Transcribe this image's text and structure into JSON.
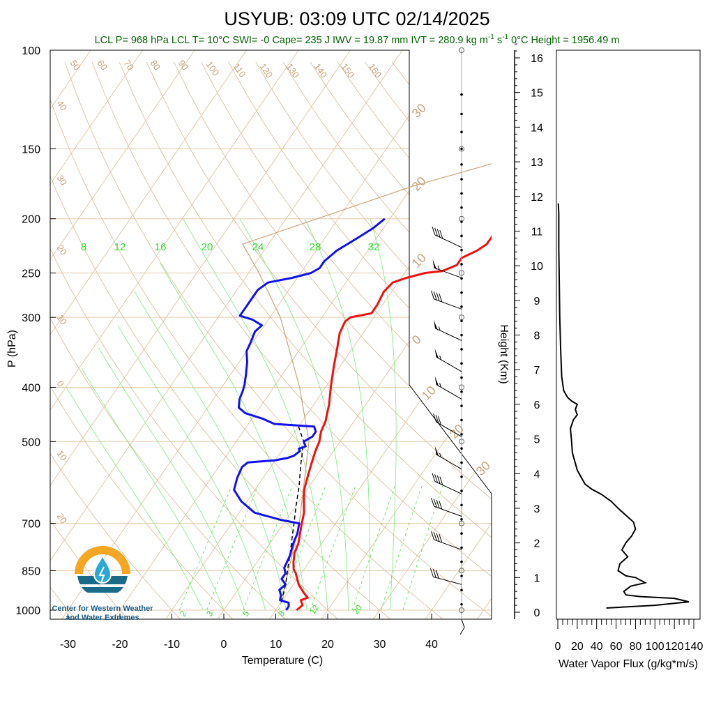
{
  "header": {
    "title": "USYUB: 03:09 UTC 02/14/2025",
    "subtitle_parts": [
      "LCL P= 968 hPa  LCL T= 10",
      "°C  SWI= -0  Cape= 235 J  IWV = 19.87 mm  IVT = 280.9 kg m",
      "-1",
      " s",
      "-1",
      "  0°C Height = 1956.49 m"
    ]
  },
  "logo": {
    "line1": "Center for Western Weather",
    "line2": "and Water Extremes",
    "colors": {
      "sun": "#f5a623",
      "water": "#1a6a8a",
      "drop": "#2aa8d8"
    }
  },
  "chart_data": [
    {
      "type": "line",
      "name": "skew-t",
      "xlabel": "Temperature (C)",
      "ylabel": "P (hPa)",
      "x_ticks": [
        -30,
        -20,
        -10,
        0,
        10,
        20,
        30,
        40
      ],
      "y_ticks": [
        100,
        150,
        200,
        250,
        300,
        400,
        500,
        700,
        850,
        1000
      ],
      "y_scale": "log",
      "temperature_profile": {
        "color": "#ee1111",
        "points": [
          [
            14,
            1000
          ],
          [
            14.5,
            980
          ],
          [
            13.5,
            960
          ],
          [
            14.5,
            950
          ],
          [
            13,
            930
          ],
          [
            11,
            900
          ],
          [
            10,
            880
          ],
          [
            9,
            860
          ],
          [
            8,
            845
          ],
          [
            7,
            820
          ],
          [
            6,
            790
          ],
          [
            5.5,
            760
          ],
          [
            4.5,
            730
          ],
          [
            3.5,
            700
          ],
          [
            2.5,
            670
          ],
          [
            1,
            640
          ],
          [
            -0.5,
            610
          ],
          [
            -1.5,
            580
          ],
          [
            -2.5,
            550
          ],
          [
            -3.5,
            520
          ],
          [
            -4,
            500
          ],
          [
            -5,
            480
          ],
          [
            -5.5,
            460
          ],
          [
            -6,
            450
          ],
          [
            -7,
            430
          ],
          [
            -9,
            400
          ],
          [
            -11,
            370
          ],
          [
            -13,
            340
          ],
          [
            -14.5,
            320
          ],
          [
            -15,
            305
          ],
          [
            -14.5,
            300
          ],
          [
            -11,
            295
          ],
          [
            -11,
            285
          ],
          [
            -11.5,
            270
          ],
          [
            -11,
            260
          ],
          [
            -9,
            255
          ],
          [
            -6,
            250
          ],
          [
            -3,
            248
          ],
          [
            -1,
            242
          ],
          [
            -1,
            235
          ],
          [
            1,
            228
          ],
          [
            2,
            222
          ],
          [
            2,
            212
          ],
          [
            3,
            205
          ],
          [
            4,
            200
          ]
        ]
      },
      "dewpoint_profile": {
        "color": "#1111ee",
        "points": [
          [
            12,
            1000
          ],
          [
            12,
            985
          ],
          [
            11.5,
            970
          ],
          [
            9.5,
            960
          ],
          [
            9,
            940
          ],
          [
            8,
            920
          ],
          [
            8.5,
            900
          ],
          [
            7,
            880
          ],
          [
            7,
            860
          ],
          [
            6,
            840
          ],
          [
            5.5,
            800
          ],
          [
            4.5,
            760
          ],
          [
            4,
            730
          ],
          [
            3,
            700
          ],
          [
            -1,
            690
          ],
          [
            -7,
            670
          ],
          [
            -11,
            640
          ],
          [
            -14,
            610
          ],
          [
            -15,
            580
          ],
          [
            -15.5,
            555
          ],
          [
            -15,
            545
          ],
          [
            -10,
            540
          ],
          [
            -8,
            535
          ],
          [
            -7,
            530
          ],
          [
            -6.5,
            520
          ],
          [
            -7,
            515
          ],
          [
            -6,
            510
          ],
          [
            -7,
            500
          ],
          [
            -6,
            490
          ],
          [
            -6,
            480
          ],
          [
            -7,
            470
          ],
          [
            -15,
            465
          ],
          [
            -18,
            455
          ],
          [
            -22,
            445
          ],
          [
            -24,
            435
          ],
          [
            -25,
            420
          ],
          [
            -25.5,
            405
          ],
          [
            -26,
            395
          ],
          [
            -27,
            380
          ],
          [
            -28.5,
            360
          ],
          [
            -30,
            345
          ],
          [
            -30.5,
            330
          ],
          [
            -31,
            318
          ],
          [
            -30.5,
            310
          ],
          [
            -33,
            303
          ],
          [
            -36,
            298
          ],
          [
            -36,
            280
          ],
          [
            -36,
            268
          ],
          [
            -35,
            260
          ],
          [
            -31,
            255
          ],
          [
            -28,
            250
          ],
          [
            -27,
            245
          ],
          [
            -27,
            238
          ],
          [
            -26,
            228
          ],
          [
            -24,
            218
          ],
          [
            -22,
            208
          ],
          [
            -21,
            200
          ]
        ]
      },
      "parcel_profile": {
        "color": "#000000",
        "style": "dashed",
        "points": [
          [
            10,
            968
          ],
          [
            8.5,
            900
          ],
          [
            7,
            850
          ],
          [
            5.5,
            800
          ],
          [
            3.8,
            750
          ],
          [
            2,
            700
          ],
          [
            0,
            650
          ],
          [
            -2,
            600
          ],
          [
            -4.5,
            550
          ],
          [
            -7,
            500
          ],
          [
            -9,
            480
          ],
          [
            -10,
            470
          ]
        ]
      },
      "reference_line": {
        "color": "#c8a27a",
        "points": [
          [
            10,
            968
          ],
          [
            3,
            700
          ],
          [
            -6,
            500
          ],
          [
            -15,
            400
          ],
          [
            -28,
            300
          ],
          [
            -38,
            250
          ],
          [
            -45,
            222
          ],
          [
            -20,
            175
          ],
          [
            30,
            120
          ],
          [
            45,
            100
          ]
        ]
      },
      "dry_adiabat_labels": [
        "50",
        "60",
        "70",
        "80",
        "90",
        "100",
        "110",
        "120",
        "130",
        "140",
        "150",
        "160",
        "40",
        "30",
        "20",
        "10",
        "0",
        "10",
        "20"
      ],
      "moist_adiabat_labels": [
        "30",
        "20",
        "10",
        "0",
        "10",
        "20",
        "30"
      ],
      "mixing_ratio_labels_top": [
        "8",
        "12",
        "16",
        "20",
        "24",
        "28",
        "32"
      ],
      "mixing_ratio_labels_bottom": [
        "2",
        "3",
        "5",
        "8",
        "12",
        "20"
      ],
      "wind_barbs": [
        {
          "p": 225,
          "kt": 40,
          "dir": 295
        },
        {
          "p": 255,
          "kt": 55,
          "dir": 290
        },
        {
          "p": 290,
          "kt": 40,
          "dir": 290
        },
        {
          "p": 330,
          "kt": 55,
          "dir": 295
        },
        {
          "p": 375,
          "kt": 55,
          "dir": 300
        },
        {
          "p": 420,
          "kt": 55,
          "dir": 300
        },
        {
          "p": 490,
          "kt": 30,
          "dir": 300
        },
        {
          "p": 560,
          "kt": 55,
          "dir": 300
        },
        {
          "p": 620,
          "kt": 40,
          "dir": 295
        },
        {
          "p": 680,
          "kt": 40,
          "dir": 290
        },
        {
          "p": 780,
          "kt": 40,
          "dir": 290
        },
        {
          "p": 900,
          "kt": 30,
          "dir": 285
        }
      ]
    },
    {
      "type": "line",
      "name": "water-vapor-flux",
      "xlabel": "Water Vapor Flux (g/kg*m/s)",
      "ylabel": "Height (Km)",
      "x_ticks": [
        0,
        20,
        40,
        60,
        80,
        100,
        120,
        140
      ],
      "y_ticks": [
        0,
        1,
        2,
        3,
        4,
        5,
        6,
        7,
        8,
        9,
        10,
        11,
        12,
        13,
        14,
        15,
        16
      ],
      "xlim": [
        0,
        140
      ],
      "ylim": [
        -0.2,
        16.4
      ],
      "points": [
        [
          50,
          0.12
        ],
        [
          100,
          0.2
        ],
        [
          135,
          0.3
        ],
        [
          120,
          0.4
        ],
        [
          85,
          0.45
        ],
        [
          70,
          0.5
        ],
        [
          68,
          0.6
        ],
        [
          75,
          0.75
        ],
        [
          90,
          0.85
        ],
        [
          80,
          1.0
        ],
        [
          70,
          1.05
        ],
        [
          62,
          1.2
        ],
        [
          64,
          1.4
        ],
        [
          72,
          1.6
        ],
        [
          66,
          1.8
        ],
        [
          70,
          2.0
        ],
        [
          76,
          2.2
        ],
        [
          80,
          2.4
        ],
        [
          78,
          2.6
        ],
        [
          70,
          2.8
        ],
        [
          62,
          3.0
        ],
        [
          55,
          3.2
        ],
        [
          45,
          3.4
        ],
        [
          35,
          3.55
        ],
        [
          28,
          3.7
        ],
        [
          24,
          3.9
        ],
        [
          20,
          4.1
        ],
        [
          18,
          4.3
        ],
        [
          15,
          4.6
        ],
        [
          14,
          5.0
        ],
        [
          13,
          5.3
        ],
        [
          16,
          5.55
        ],
        [
          20,
          5.7
        ],
        [
          18,
          5.85
        ],
        [
          20,
          6.0
        ],
        [
          14,
          6.1
        ],
        [
          10,
          6.2
        ],
        [
          6,
          6.4
        ],
        [
          4,
          6.8
        ],
        [
          3,
          7.5
        ],
        [
          2,
          8.5
        ],
        [
          1.5,
          9.5
        ],
        [
          1,
          10.5
        ],
        [
          1,
          11.5
        ],
        [
          0.5,
          11.8
        ]
      ]
    }
  ]
}
